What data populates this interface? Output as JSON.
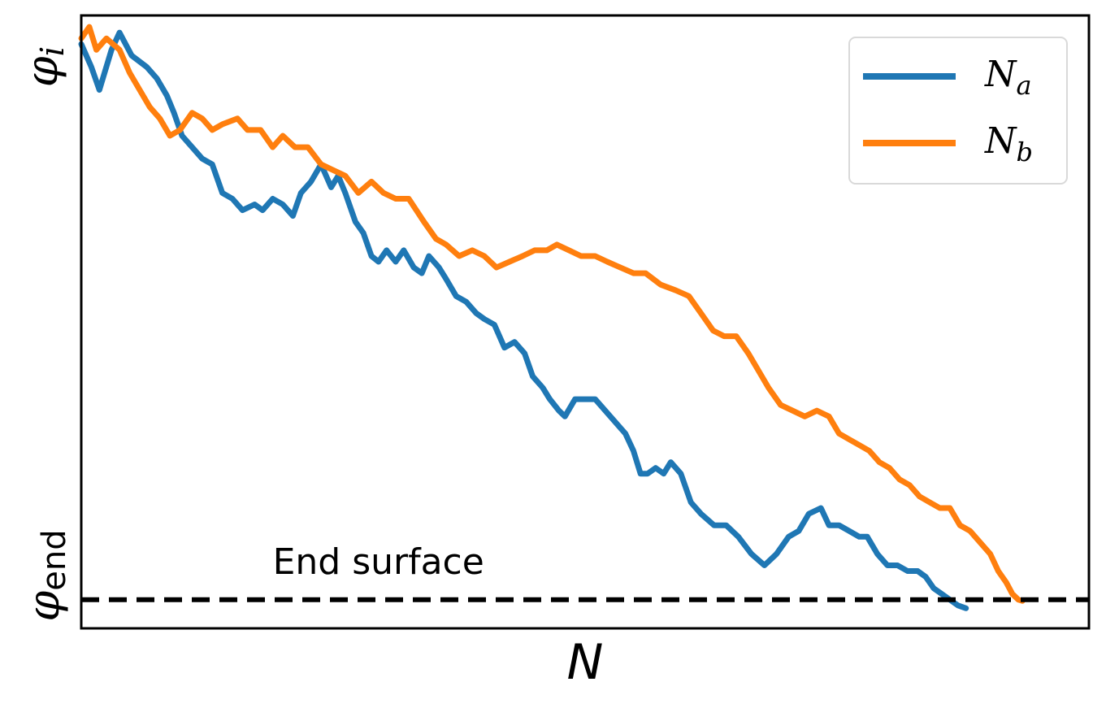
{
  "chart_data": {
    "type": "line",
    "xlabel": "N",
    "ylabel": "",
    "x_ticks": [],
    "y_ticks": [
      {
        "label_base": "φ",
        "label_sub": "i",
        "value": 1.0
      },
      {
        "label_base": "φ",
        "label_sub": "end",
        "value": 0.0
      }
    ],
    "xlim": [
      0,
      1000
    ],
    "ylim": [
      -0.05,
      1.02
    ],
    "grid": false,
    "legend_position": "top-right",
    "annotations": [
      {
        "text": "End surface",
        "x": 190,
        "y": 0.045
      }
    ],
    "reference_lines": [
      {
        "name": "End surface",
        "y": 0.0,
        "style": "dashed",
        "color": "#000000"
      }
    ],
    "series": [
      {
        "name_base": "N",
        "name_sub": "a",
        "color": "#1f77b4",
        "points": [
          [
            0,
            0.97
          ],
          [
            10,
            0.93
          ],
          [
            18,
            0.89
          ],
          [
            30,
            0.96
          ],
          [
            38,
            0.99
          ],
          [
            50,
            0.95
          ],
          [
            65,
            0.93
          ],
          [
            75,
            0.91
          ],
          [
            85,
            0.88
          ],
          [
            92,
            0.85
          ],
          [
            100,
            0.81
          ],
          [
            110,
            0.79
          ],
          [
            120,
            0.77
          ],
          [
            130,
            0.76
          ],
          [
            140,
            0.71
          ],
          [
            150,
            0.7
          ],
          [
            160,
            0.68
          ],
          [
            172,
            0.69
          ],
          [
            180,
            0.68
          ],
          [
            190,
            0.7
          ],
          [
            200,
            0.69
          ],
          [
            210,
            0.67
          ],
          [
            218,
            0.71
          ],
          [
            228,
            0.73
          ],
          [
            238,
            0.76
          ],
          [
            248,
            0.72
          ],
          [
            255,
            0.74
          ],
          [
            262,
            0.71
          ],
          [
            272,
            0.66
          ],
          [
            280,
            0.64
          ],
          [
            288,
            0.6
          ],
          [
            295,
            0.59
          ],
          [
            303,
            0.61
          ],
          [
            312,
            0.59
          ],
          [
            320,
            0.61
          ],
          [
            330,
            0.58
          ],
          [
            338,
            0.57
          ],
          [
            345,
            0.6
          ],
          [
            355,
            0.58
          ],
          [
            362,
            0.56
          ],
          [
            372,
            0.53
          ],
          [
            382,
            0.52
          ],
          [
            392,
            0.5
          ],
          [
            400,
            0.49
          ],
          [
            410,
            0.48
          ],
          [
            420,
            0.44
          ],
          [
            430,
            0.45
          ],
          [
            440,
            0.43
          ],
          [
            448,
            0.39
          ],
          [
            458,
            0.37
          ],
          [
            465,
            0.35
          ],
          [
            474,
            0.33
          ],
          [
            480,
            0.32
          ],
          [
            490,
            0.35
          ],
          [
            498,
            0.35
          ],
          [
            510,
            0.35
          ],
          [
            520,
            0.33
          ],
          [
            530,
            0.31
          ],
          [
            540,
            0.29
          ],
          [
            548,
            0.26
          ],
          [
            555,
            0.22
          ],
          [
            562,
            0.22
          ],
          [
            570,
            0.23
          ],
          [
            578,
            0.22
          ],
          [
            585,
            0.24
          ],
          [
            595,
            0.22
          ],
          [
            605,
            0.17
          ],
          [
            615,
            0.15
          ],
          [
            628,
            0.13
          ],
          [
            640,
            0.13
          ],
          [
            652,
            0.11
          ],
          [
            665,
            0.08
          ],
          [
            678,
            0.06
          ],
          [
            690,
            0.08
          ],
          [
            702,
            0.11
          ],
          [
            712,
            0.12
          ],
          [
            722,
            0.15
          ],
          [
            734,
            0.16
          ],
          [
            742,
            0.13
          ],
          [
            752,
            0.13
          ],
          [
            762,
            0.12
          ],
          [
            772,
            0.11
          ],
          [
            780,
            0.11
          ],
          [
            790,
            0.08
          ],
          [
            800,
            0.06
          ],
          [
            810,
            0.06
          ],
          [
            820,
            0.05
          ],
          [
            830,
            0.05
          ],
          [
            838,
            0.04
          ],
          [
            846,
            0.02
          ],
          [
            854,
            0.01
          ],
          [
            862,
            0.0
          ],
          [
            870,
            -0.01
          ],
          [
            878,
            -0.015
          ]
        ]
      },
      {
        "name_base": "N",
        "name_sub": "b",
        "color": "#ff7f0e",
        "points": [
          [
            0,
            0.98
          ],
          [
            8,
            1.0
          ],
          [
            15,
            0.96
          ],
          [
            25,
            0.98
          ],
          [
            38,
            0.96
          ],
          [
            48,
            0.92
          ],
          [
            58,
            0.89
          ],
          [
            68,
            0.86
          ],
          [
            78,
            0.84
          ],
          [
            88,
            0.81
          ],
          [
            98,
            0.82
          ],
          [
            110,
            0.85
          ],
          [
            120,
            0.84
          ],
          [
            130,
            0.82
          ],
          [
            140,
            0.83
          ],
          [
            155,
            0.84
          ],
          [
            165,
            0.82
          ],
          [
            178,
            0.82
          ],
          [
            190,
            0.79
          ],
          [
            200,
            0.81
          ],
          [
            212,
            0.79
          ],
          [
            225,
            0.79
          ],
          [
            238,
            0.76
          ],
          [
            250,
            0.75
          ],
          [
            262,
            0.74
          ],
          [
            275,
            0.71
          ],
          [
            288,
            0.73
          ],
          [
            300,
            0.71
          ],
          [
            312,
            0.7
          ],
          [
            325,
            0.7
          ],
          [
            340,
            0.66
          ],
          [
            352,
            0.63
          ],
          [
            362,
            0.62
          ],
          [
            375,
            0.6
          ],
          [
            388,
            0.61
          ],
          [
            400,
            0.6
          ],
          [
            412,
            0.58
          ],
          [
            425,
            0.59
          ],
          [
            438,
            0.6
          ],
          [
            450,
            0.61
          ],
          [
            462,
            0.61
          ],
          [
            472,
            0.62
          ],
          [
            484,
            0.61
          ],
          [
            496,
            0.6
          ],
          [
            510,
            0.6
          ],
          [
            522,
            0.59
          ],
          [
            535,
            0.58
          ],
          [
            548,
            0.57
          ],
          [
            560,
            0.57
          ],
          [
            575,
            0.55
          ],
          [
            590,
            0.54
          ],
          [
            603,
            0.53
          ],
          [
            615,
            0.5
          ],
          [
            627,
            0.47
          ],
          [
            638,
            0.46
          ],
          [
            650,
            0.46
          ],
          [
            662,
            0.43
          ],
          [
            672,
            0.4
          ],
          [
            682,
            0.37
          ],
          [
            694,
            0.34
          ],
          [
            706,
            0.33
          ],
          [
            718,
            0.32
          ],
          [
            730,
            0.33
          ],
          [
            742,
            0.32
          ],
          [
            752,
            0.29
          ],
          [
            762,
            0.28
          ],
          [
            772,
            0.27
          ],
          [
            782,
            0.26
          ],
          [
            792,
            0.24
          ],
          [
            802,
            0.23
          ],
          [
            812,
            0.21
          ],
          [
            822,
            0.2
          ],
          [
            832,
            0.18
          ],
          [
            842,
            0.17
          ],
          [
            852,
            0.16
          ],
          [
            862,
            0.16
          ],
          [
            872,
            0.13
          ],
          [
            882,
            0.12
          ],
          [
            892,
            0.1
          ],
          [
            902,
            0.08
          ],
          [
            910,
            0.05
          ],
          [
            918,
            0.03
          ],
          [
            924,
            0.01
          ],
          [
            930,
            0.0
          ],
          [
            934,
            -0.002
          ]
        ]
      }
    ]
  }
}
